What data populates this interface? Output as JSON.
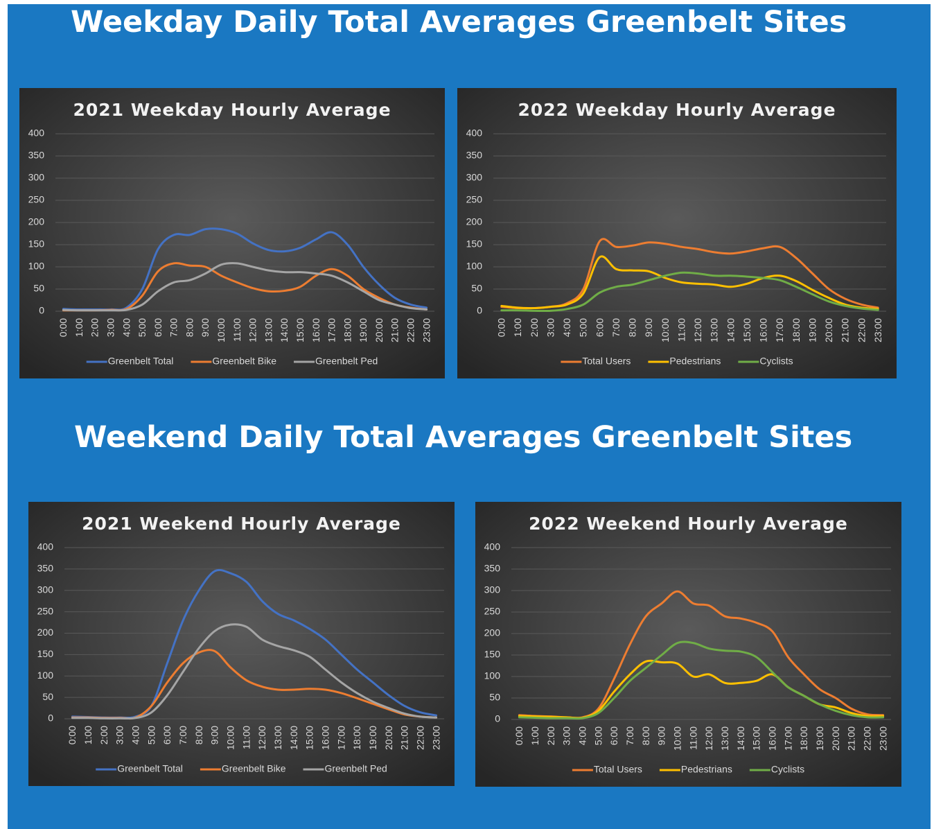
{
  "headings": [
    "Weekday Daily Total Averages Greenbelt Sites",
    "Weekend Daily Total Averages Greenbelt Sites"
  ],
  "chart_data": [
    {
      "type": "line",
      "title": "2021 Weekday Hourly Average",
      "categories": [
        "0:00",
        "1:00",
        "2:00",
        "3:00",
        "4:00",
        "5:00",
        "6:00",
        "7:00",
        "8:00",
        "9:00",
        "10:00",
        "11:00",
        "12:00",
        "13:00",
        "14:00",
        "15:00",
        "16:00",
        "17:00",
        "18:00",
        "19:00",
        "20:00",
        "21:00",
        "22:00",
        "23:00"
      ],
      "ylim": [
        0,
        400
      ],
      "yticks": [
        0,
        50,
        100,
        150,
        200,
        250,
        300,
        350,
        400
      ],
      "grid": true,
      "legend": "bottom",
      "series": [
        {
          "name": "Greenbelt Total",
          "color": "#4472c4",
          "values": [
            5,
            4,
            4,
            4,
            8,
            50,
            140,
            172,
            172,
            185,
            185,
            175,
            153,
            138,
            135,
            143,
            162,
            178,
            150,
            100,
            60,
            30,
            15,
            8
          ]
        },
        {
          "name": "Greenbelt Bike",
          "color": "#ed7d31",
          "values": [
            2,
            2,
            2,
            3,
            5,
            35,
            90,
            108,
            103,
            100,
            80,
            65,
            52,
            45,
            46,
            55,
            80,
            95,
            80,
            50,
            30,
            15,
            8,
            4
          ]
        },
        {
          "name": "Greenbelt Ped",
          "color": "#a5a5a5",
          "values": [
            3,
            2,
            2,
            2,
            3,
            15,
            45,
            65,
            70,
            85,
            105,
            108,
            100,
            92,
            88,
            88,
            85,
            80,
            65,
            45,
            25,
            15,
            7,
            4
          ]
        }
      ]
    },
    {
      "type": "line",
      "title": "2022 Weekday Hourly Average",
      "categories": [
        "0:00",
        "1:00",
        "2:00",
        "3:00",
        "4:00",
        "5:00",
        "6:00",
        "7:00",
        "8:00",
        "9:00",
        "10:00",
        "11:00",
        "12:00",
        "13:00",
        "14:00",
        "15:00",
        "16:00",
        "17:00",
        "18:00",
        "19:00",
        "20:00",
        "21:00",
        "22:00",
        "23:00"
      ],
      "ylim": [
        0,
        400
      ],
      "yticks": [
        0,
        50,
        100,
        150,
        200,
        250,
        300,
        350,
        400
      ],
      "grid": true,
      "legend": "bottom",
      "series": [
        {
          "name": "Total Users",
          "color": "#ed7d31",
          "values": [
            10,
            7,
            7,
            10,
            18,
            50,
            158,
            145,
            148,
            155,
            152,
            145,
            140,
            133,
            130,
            135,
            142,
            145,
            120,
            85,
            50,
            28,
            15,
            8
          ]
        },
        {
          "name": "Pedestrians",
          "color": "#ffc000",
          "values": [
            12,
            8,
            7,
            10,
            15,
            40,
            122,
            95,
            92,
            90,
            75,
            65,
            62,
            60,
            55,
            62,
            75,
            80,
            68,
            48,
            30,
            15,
            8,
            5
          ]
        },
        {
          "name": "Cyclists",
          "color": "#70ad47",
          "values": [
            2,
            2,
            1,
            1,
            5,
            15,
            42,
            55,
            60,
            70,
            80,
            87,
            85,
            80,
            80,
            78,
            75,
            70,
            55,
            38,
            22,
            12,
            6,
            3
          ]
        }
      ]
    },
    {
      "type": "line",
      "title": "2021 Weekend Hourly Average",
      "categories": [
        "0:00",
        "1:00",
        "2:00",
        "3:00",
        "4:00",
        "5:00",
        "6:00",
        "7:00",
        "8:00",
        "9:00",
        "10:00",
        "11:00",
        "12:00",
        "13:00",
        "14:00",
        "15:00",
        "16:00",
        "17:00",
        "18:00",
        "19:00",
        "20:00",
        "21:00",
        "22:00",
        "23:00"
      ],
      "ylim": [
        0,
        400
      ],
      "yticks": [
        0,
        50,
        100,
        150,
        200,
        250,
        300,
        350,
        400
      ],
      "grid": true,
      "legend": "bottom",
      "series": [
        {
          "name": "Greenbelt Total",
          "color": "#4472c4",
          "values": [
            5,
            4,
            3,
            3,
            5,
            30,
            130,
            230,
            300,
            345,
            340,
            320,
            275,
            245,
            230,
            210,
            185,
            150,
            115,
            85,
            55,
            30,
            15,
            8
          ]
        },
        {
          "name": "Greenbelt Bike",
          "color": "#ed7d31",
          "values": [
            3,
            3,
            2,
            2,
            3,
            30,
            85,
            130,
            155,
            158,
            120,
            90,
            75,
            68,
            68,
            70,
            68,
            60,
            48,
            35,
            22,
            10,
            5,
            3
          ]
        },
        {
          "name": "Greenbelt Ped",
          "color": "#a5a5a5",
          "values": [
            2,
            2,
            1,
            1,
            2,
            15,
            55,
            110,
            165,
            205,
            220,
            215,
            185,
            170,
            160,
            145,
            115,
            85,
            60,
            40,
            25,
            12,
            5,
            3
          ]
        }
      ]
    },
    {
      "type": "line",
      "title": "2022 Weekend Hourly Average",
      "categories": [
        "0:00",
        "1:00",
        "2:00",
        "3:00",
        "4:00",
        "5:00",
        "6:00",
        "7:00",
        "8:00",
        "9:00",
        "10:00",
        "11:00",
        "12:00",
        "13:00",
        "14:00",
        "15:00",
        "16:00",
        "17:00",
        "18:00",
        "19:00",
        "20:00",
        "21:00",
        "22:00",
        "23:00"
      ],
      "ylim": [
        0,
        400
      ],
      "yticks": [
        0,
        50,
        100,
        150,
        200,
        250,
        300,
        350,
        400
      ],
      "grid": true,
      "legend": "bottom",
      "series": [
        {
          "name": "Total Users",
          "color": "#ed7d31",
          "values": [
            10,
            8,
            7,
            5,
            5,
            25,
            95,
            175,
            240,
            270,
            298,
            270,
            265,
            240,
            235,
            225,
            205,
            145,
            105,
            70,
            50,
            25,
            12,
            10
          ]
        },
        {
          "name": "Pedestrians",
          "color": "#ffc000",
          "values": [
            8,
            7,
            6,
            5,
            4,
            20,
            65,
            105,
            135,
            133,
            130,
            100,
            105,
            85,
            85,
            90,
            105,
            75,
            55,
            35,
            28,
            15,
            8,
            8
          ]
        },
        {
          "name": "Cyclists",
          "color": "#70ad47",
          "values": [
            5,
            4,
            3,
            3,
            3,
            15,
            50,
            90,
            120,
            150,
            178,
            178,
            165,
            160,
            158,
            145,
            110,
            75,
            55,
            35,
            20,
            10,
            5,
            5
          ]
        }
      ]
    }
  ]
}
